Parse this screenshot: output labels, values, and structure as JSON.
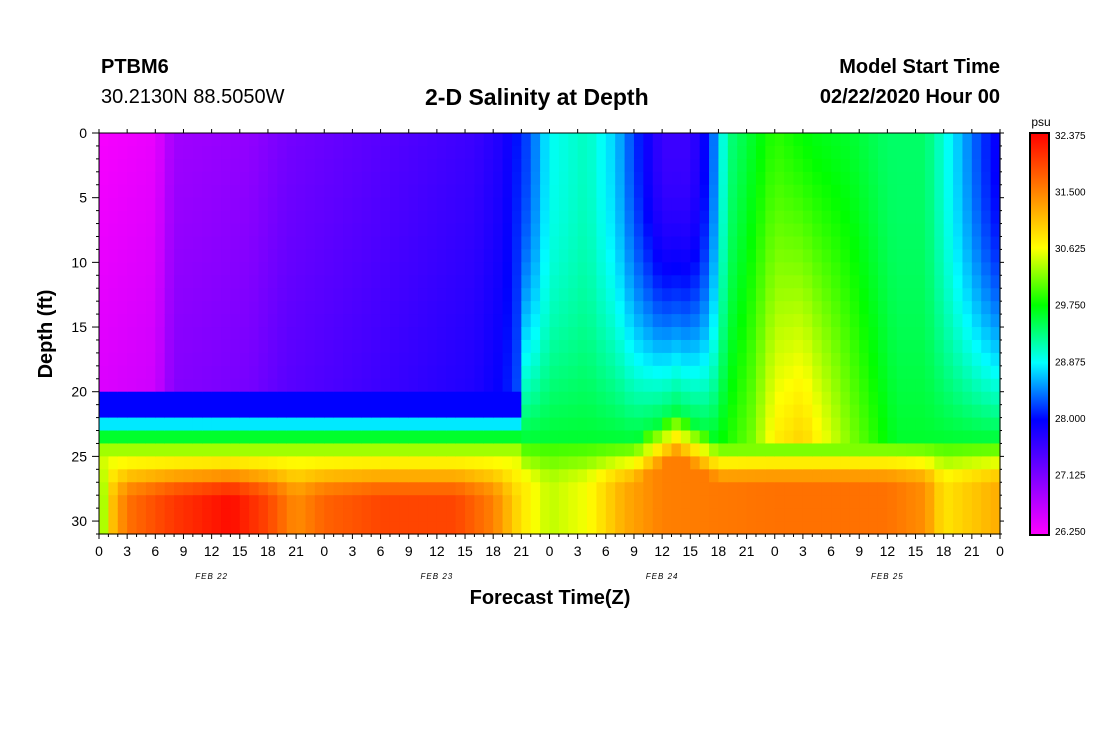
{
  "header": {
    "station": "PTBM6",
    "coordinates": "30.2130N 88.5050W",
    "title": "2-D Salinity at Depth",
    "model_start_label": "Model Start Time",
    "model_start_value": "02/22/2020 Hour 00"
  },
  "chart_data": {
    "type": "heatmap",
    "title": "2-D Salinity at Depth",
    "xlabel": "Forecast Time(Z)",
    "ylabel": "Depth (ft)",
    "x_unit": "hours since 02/22/2020 00Z",
    "xlim": [
      0,
      96
    ],
    "ylim": [
      0,
      31
    ],
    "y_inverted": true,
    "x_tick_hours": [
      0,
      3,
      6,
      9,
      12,
      15,
      18,
      21,
      24,
      27,
      30,
      33,
      36,
      39,
      42,
      45,
      48,
      51,
      54,
      57,
      60,
      63,
      66,
      69,
      72,
      75,
      78,
      81,
      84,
      87,
      90,
      93,
      96
    ],
    "x_tick_labels": [
      "0",
      "3",
      "6",
      "9",
      "12",
      "15",
      "18",
      "21",
      "0",
      "3",
      "6",
      "9",
      "12",
      "15",
      "18",
      "21",
      "0",
      "3",
      "6",
      "9",
      "12",
      "15",
      "18",
      "21",
      "0",
      "3",
      "6",
      "9",
      "12",
      "15",
      "18",
      "21",
      "0"
    ],
    "date_labels": [
      {
        "hour": 12,
        "label": "FEB 22"
      },
      {
        "hour": 36,
        "label": "FEB 23"
      },
      {
        "hour": 60,
        "label": "FEB 24"
      },
      {
        "hour": 84,
        "label": "FEB 25"
      }
    ],
    "y_ticks": [
      0,
      5,
      10,
      15,
      20,
      25,
      30
    ],
    "colorbar": {
      "unit": "psu",
      "min": 26.25,
      "max": 32.375,
      "ticks": [
        "26.250",
        "27.125",
        "28.000",
        "28.875",
        "29.750",
        "30.625",
        "31.500",
        "32.375"
      ],
      "colors": [
        "#ff00ff",
        "#8000ff",
        "#0000ff",
        "#00ffff",
        "#00ff00",
        "#ffff00",
        "#ff8000",
        "#ff0000"
      ]
    },
    "surface_salinity": [
      {
        "hour": 0,
        "value": 26.3
      },
      {
        "hour": 6,
        "value": 26.4
      },
      {
        "hour": 8,
        "value": 26.9
      },
      {
        "hour": 16,
        "value": 27.0
      },
      {
        "hour": 20,
        "value": 27.2
      },
      {
        "hour": 30,
        "value": 27.4
      },
      {
        "hour": 40,
        "value": 27.6
      },
      {
        "hour": 43,
        "value": 27.8
      },
      {
        "hour": 46,
        "value": 28.3
      },
      {
        "hour": 48,
        "value": 28.9
      },
      {
        "hour": 52,
        "value": 29.1
      },
      {
        "hour": 55,
        "value": 28.7
      },
      {
        "hour": 57,
        "value": 28.2
      },
      {
        "hour": 60,
        "value": 27.6
      },
      {
        "hour": 63,
        "value": 27.6
      },
      {
        "hour": 65,
        "value": 28.1
      },
      {
        "hour": 67,
        "value": 29.3
      },
      {
        "hour": 72,
        "value": 29.9
      },
      {
        "hour": 76,
        "value": 29.7
      },
      {
        "hour": 80,
        "value": 29.6
      },
      {
        "hour": 84,
        "value": 29.4
      },
      {
        "hour": 88,
        "value": 29.4
      },
      {
        "hour": 90,
        "value": 29.0
      },
      {
        "hour": 92,
        "value": 28.6
      },
      {
        "hour": 94,
        "value": 28.2
      },
      {
        "hour": 96,
        "value": 27.9
      }
    ],
    "bottom_salinity": [
      {
        "hour": 0,
        "value": 29.8
      },
      {
        "hour": 1,
        "value": 30.9
      },
      {
        "hour": 3,
        "value": 31.6
      },
      {
        "hour": 8,
        "value": 32.0
      },
      {
        "hour": 14,
        "value": 32.3
      },
      {
        "hour": 18,
        "value": 31.9
      },
      {
        "hour": 21,
        "value": 31.4
      },
      {
        "hour": 24,
        "value": 31.7
      },
      {
        "hour": 30,
        "value": 31.9
      },
      {
        "hour": 38,
        "value": 31.9
      },
      {
        "hour": 42,
        "value": 31.5
      },
      {
        "hour": 45,
        "value": 30.8
      },
      {
        "hour": 48,
        "value": 30.4
      },
      {
        "hour": 52,
        "value": 30.6
      },
      {
        "hour": 56,
        "value": 31.2
      },
      {
        "hour": 60,
        "value": 31.5
      },
      {
        "hour": 72,
        "value": 31.6
      },
      {
        "hour": 84,
        "value": 31.6
      },
      {
        "hour": 88,
        "value": 31.4
      },
      {
        "hour": 90,
        "value": 30.8
      },
      {
        "hour": 93,
        "value": 31.0
      },
      {
        "hour": 96,
        "value": 31.2
      }
    ]
  }
}
